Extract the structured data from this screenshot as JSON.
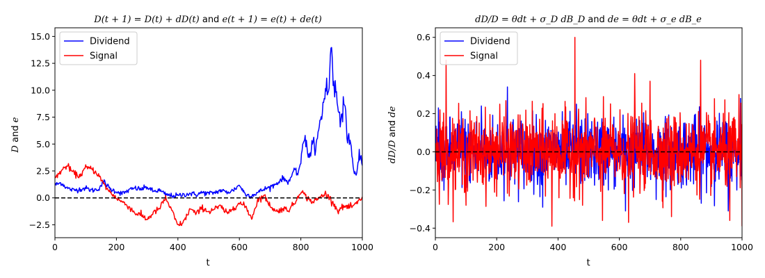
{
  "chart_data": [
    {
      "type": "line",
      "title_parts": {
        "lhs1": "D(t + 1) = D(t) + dD(t)",
        "and": " and ",
        "lhs2": "e(t + 1) = e(t) + de(t)"
      },
      "xlabel": "t",
      "ylabel_parts": {
        "a": "D",
        "and": " and ",
        "b": "e"
      },
      "xlim": [
        0,
        1000
      ],
      "ylim": [
        -3.7,
        15.8
      ],
      "xticks": [
        "0",
        "200",
        "400",
        "600",
        "800",
        "1000"
      ],
      "xtick_values": [
        0,
        200,
        400,
        600,
        800,
        1000
      ],
      "yticks": [
        "−2.5",
        "0.0",
        "2.5",
        "5.0",
        "7.5",
        "10.0",
        "12.5",
        "15.0"
      ],
      "ytick_values": [
        -2.5,
        0,
        2.5,
        5,
        7.5,
        10,
        12.5,
        15
      ],
      "legend_position": "top-left",
      "reference_line": {
        "y": 0,
        "style": "dashed",
        "color": "#000000"
      },
      "series": [
        {
          "name": "Dividend",
          "color": "#0000ff",
          "x": [
            0,
            20,
            40,
            60,
            80,
            100,
            120,
            140,
            160,
            180,
            200,
            220,
            240,
            260,
            280,
            300,
            320,
            340,
            360,
            380,
            400,
            420,
            440,
            460,
            480,
            500,
            520,
            540,
            560,
            580,
            600,
            620,
            640,
            660,
            680,
            700,
            720,
            740,
            760,
            780,
            790,
            800,
            810,
            820,
            830,
            840,
            850,
            860,
            870,
            880,
            890,
            900,
            905,
            910,
            920,
            930,
            940,
            950,
            960,
            970,
            980,
            990,
            1000
          ],
          "values": [
            1.2,
            1.4,
            0.9,
            0.7,
            0.8,
            0.9,
            0.7,
            0.8,
            1.5,
            0.8,
            0.6,
            0.4,
            0.7,
            0.9,
            0.8,
            1.0,
            0.6,
            0.7,
            0.3,
            0.2,
            0.2,
            0.3,
            0.4,
            0.3,
            0.5,
            0.4,
            0.5,
            0.7,
            0.5,
            0.7,
            1.2,
            0.3,
            0.2,
            0.5,
            0.8,
            1.0,
            1.3,
            1.8,
            1.5,
            2.6,
            2.2,
            3.5,
            5.8,
            4.5,
            4.0,
            5.0,
            4.8,
            6.5,
            8.0,
            10.5,
            9.5,
            14.6,
            11.0,
            10.5,
            8.5,
            7.5,
            8.8,
            6.0,
            5.5,
            3.0,
            2.0,
            4.2,
            3.0
          ]
        },
        {
          "name": "Signal",
          "color": "#ff0000",
          "x": [
            0,
            20,
            40,
            60,
            80,
            100,
            120,
            140,
            160,
            180,
            200,
            220,
            240,
            260,
            280,
            300,
            320,
            340,
            360,
            380,
            400,
            420,
            440,
            460,
            480,
            500,
            520,
            540,
            560,
            580,
            600,
            620,
            640,
            660,
            680,
            700,
            720,
            740,
            760,
            780,
            800,
            820,
            840,
            860,
            880,
            900,
            920,
            940,
            960,
            980,
            1000
          ],
          "values": [
            1.8,
            2.5,
            3.0,
            2.3,
            2.0,
            2.8,
            2.7,
            2.2,
            1.2,
            0.5,
            0.0,
            -0.4,
            -0.8,
            -1.4,
            -1.6,
            -2.0,
            -1.4,
            -1.0,
            0.0,
            -1.2,
            -2.6,
            -2.2,
            -1.0,
            -1.5,
            -0.9,
            -1.3,
            -1.0,
            -0.8,
            -1.5,
            -0.9,
            -0.5,
            -0.8,
            -1.9,
            -0.2,
            0.2,
            -0.7,
            -1.3,
            -1.0,
            -1.1,
            -0.5,
            0.7,
            0.0,
            -0.4,
            0.0,
            0.4,
            -0.2,
            -1.2,
            -0.8,
            -0.9,
            -0.6,
            0.1
          ]
        }
      ]
    },
    {
      "type": "line",
      "title_parts": {
        "lhs1": "dD/D = θdt + σ_D dB_D",
        "and": " and ",
        "lhs2": "de = θdt + σ_e dB_e"
      },
      "xlabel": "t",
      "ylabel_parts": {
        "a": "dD/D",
        "and": " and ",
        "b": "de"
      },
      "xlim": [
        0,
        1000
      ],
      "ylim": [
        -0.45,
        0.65
      ],
      "xticks": [
        "0",
        "200",
        "400",
        "600",
        "800",
        "1000"
      ],
      "xtick_values": [
        0,
        200,
        400,
        600,
        800,
        1000
      ],
      "yticks": [
        "−0.4",
        "−0.2",
        "0.0",
        "0.2",
        "0.4",
        "0.6"
      ],
      "ytick_values": [
        -0.4,
        -0.2,
        0,
        0.2,
        0.4,
        0.6
      ],
      "legend_position": "top-left",
      "reference_line": {
        "y": 0,
        "style": "dashed",
        "color": "#000000"
      },
      "series": [
        {
          "name": "Dividend",
          "color": "#0000ff",
          "noise_amplitude": 0.12,
          "range": [
            -0.32,
            0.34
          ],
          "spikes": [
            [
              10,
              0.23
            ],
            [
              85,
              0.21
            ],
            [
              150,
              0.24
            ],
            [
              235,
              0.34
            ],
            [
              350,
              -0.29
            ],
            [
              460,
              0.25
            ],
            [
              620,
              -0.31
            ],
            [
              720,
              -0.25
            ],
            [
              955,
              -0.31
            ],
            [
              995,
              0.28
            ]
          ]
        },
        {
          "name": "Signal",
          "color": "#ff0000",
          "noise_amplitude": 0.13,
          "range": [
            -0.39,
            0.6
          ],
          "spikes": [
            [
              15,
              0.22
            ],
            [
              35,
              0.48
            ],
            [
              100,
              -0.28
            ],
            [
              210,
              0.25
            ],
            [
              380,
              -0.39
            ],
            [
              390,
              0.2
            ],
            [
              455,
              0.6
            ],
            [
              480,
              -0.28
            ],
            [
              545,
              -0.36
            ],
            [
              630,
              -0.37
            ],
            [
              650,
              0.41
            ],
            [
              700,
              0.37
            ],
            [
              770,
              -0.34
            ],
            [
              865,
              0.48
            ],
            [
              960,
              -0.36
            ],
            [
              990,
              0.3
            ],
            [
              1000,
              -0.39
            ]
          ]
        }
      ]
    }
  ]
}
